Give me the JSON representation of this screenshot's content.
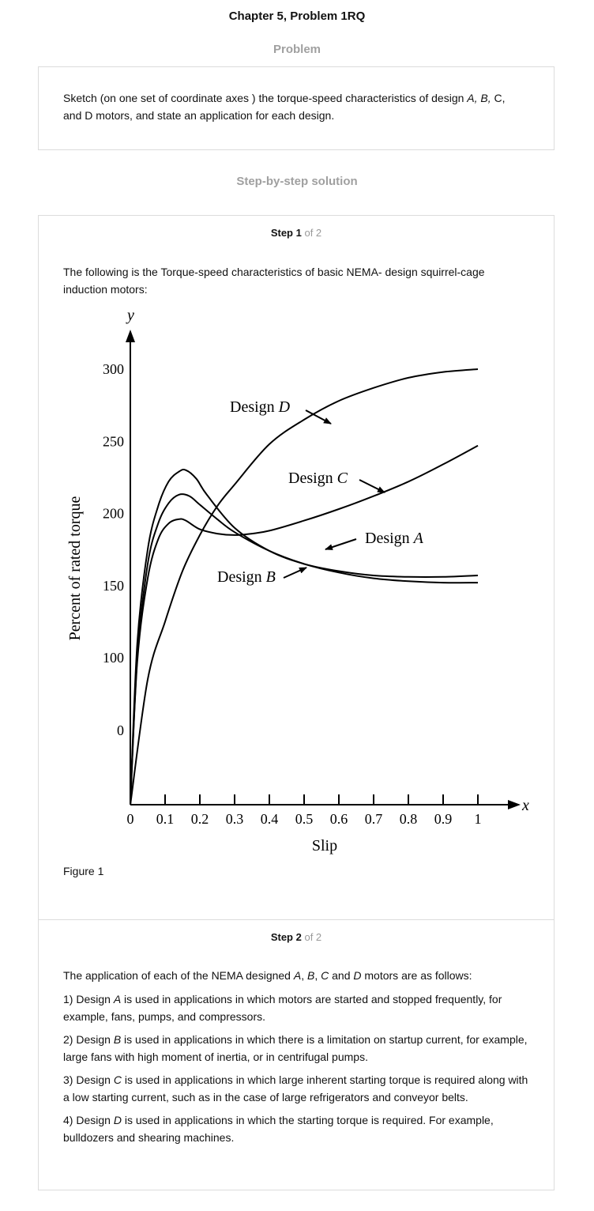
{
  "header": {
    "title": "Chapter 5, Problem 1RQ"
  },
  "problem": {
    "heading": "Problem",
    "text_a": "Sketch (on one set of coordinate axes ) the torque-speed characteristics of design ",
    "text_it1": "A, B,",
    "text_b": " C,",
    "text_c": "and D motors, and state an application for each design."
  },
  "solution": {
    "heading": "Step-by-step solution",
    "step1": {
      "label": "Step 1",
      "of": "of 2",
      "text": "The following is the Torque-speed characteristics of basic NEMA- design squirrel-cage induction motors:",
      "caption": "Figure 1"
    },
    "step2": {
      "label": "Step 2",
      "of": "of 2",
      "intro_a": "The application of each of the NEMA designed ",
      "intro_A": "A",
      "intro_c1": ", ",
      "intro_B": "B",
      "intro_c2": ", ",
      "intro_C": "C",
      "intro_and": " and ",
      "intro_D": "D",
      "intro_end": " motors are as follows:",
      "items": [
        {
          "pre": "1) Design ",
          "letter": "A",
          "post": " is used in applications in which motors are started and stopped frequently, for example, fans, pumps, and compressors."
        },
        {
          "pre": "2) Design ",
          "letter": "B",
          "post": " is used in applications in which there is a limitation on startup current, for example, large fans with high moment of inertia, or in centrifugal pumps."
        },
        {
          "pre": "3) Design ",
          "letter": "C",
          "post": " is used in applications in which large inherent starting torque is required along with a low starting current, such as in the case of large refrigerators and conveyor belts."
        },
        {
          "pre": "4) Design ",
          "letter": "D",
          "post": " is used in applications in which the starting torque is required. For example, bulldozers and shearing machines."
        }
      ]
    }
  },
  "chart_data": {
    "type": "line",
    "xlabel": "Slip",
    "ylabel": "Percent of rated torque",
    "x_axis_letter": "x",
    "y_axis_letter": "y",
    "x_ticks": [
      "0",
      "0.1",
      "0.2",
      "0.3",
      "0.4",
      "0.5",
      "0.6",
      "0.7",
      "0.8",
      "0.9",
      "1"
    ],
    "y_ticks": [
      "0",
      "100",
      "150",
      "200",
      "250",
      "300"
    ],
    "xlim": [
      0,
      1
    ],
    "grid": false,
    "series": [
      {
        "name": "Design A",
        "label_pre": "Design ",
        "label_letter": "A",
        "x": [
          0,
          0.02,
          0.05,
          0.08,
          0.11,
          0.14,
          0.16,
          0.19,
          0.22,
          0.3,
          0.4,
          0.5,
          0.6,
          0.7,
          0.8,
          0.9,
          1.0
        ],
        "y": [
          0,
          110,
          175,
          205,
          222,
          229,
          230,
          224,
          213,
          190,
          174,
          165,
          160,
          157,
          156,
          156,
          157
        ]
      },
      {
        "name": "Design B",
        "label_pre": "Design ",
        "label_letter": "B",
        "x": [
          0,
          0.02,
          0.05,
          0.08,
          0.11,
          0.14,
          0.17,
          0.2,
          0.25,
          0.3,
          0.4,
          0.5,
          0.6,
          0.7,
          0.8,
          0.9,
          1.0
        ],
        "y": [
          0,
          100,
          165,
          193,
          207,
          213,
          212,
          206,
          196,
          187,
          174,
          165,
          159,
          155,
          153,
          152,
          152
        ]
      },
      {
        "name": "Design C",
        "label_pre": "Design ",
        "label_letter": "C",
        "x": [
          0,
          0.02,
          0.05,
          0.08,
          0.11,
          0.14,
          0.16,
          0.2,
          0.25,
          0.3,
          0.35,
          0.4,
          0.5,
          0.6,
          0.7,
          0.8,
          0.9,
          1.0
        ],
        "y": [
          0,
          95,
          155,
          182,
          193,
          196,
          195,
          189,
          186,
          185,
          186,
          188,
          195,
          203,
          212,
          222,
          234,
          247
        ]
      },
      {
        "name": "Design D",
        "label_pre": "Design ",
        "label_letter": "D",
        "x": [
          0,
          0.05,
          0.1,
          0.15,
          0.2,
          0.25,
          0.3,
          0.4,
          0.5,
          0.6,
          0.7,
          0.8,
          0.9,
          1.0
        ],
        "y": [
          0,
          70,
          125,
          160,
          185,
          205,
          220,
          248,
          265,
          278,
          287,
          294,
          298,
          300
        ]
      }
    ]
  }
}
